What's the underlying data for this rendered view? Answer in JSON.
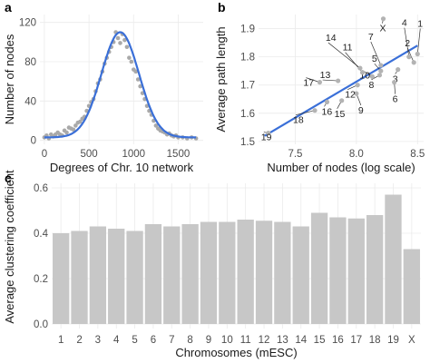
{
  "chart_data": [
    {
      "panel": "a",
      "type": "scatter",
      "xlabel": "Degrees of Chr. 10 network",
      "ylabel": "Number of nodes",
      "xlim": [
        -50,
        1780
      ],
      "ylim": [
        -4,
        128
      ],
      "xticks": [
        0,
        500,
        1000,
        1500
      ],
      "yticks": [
        0,
        40,
        80,
        120
      ],
      "fit_line": {
        "type": "gaussian",
        "amplitude": 107,
        "mean": 850,
        "sd": 210,
        "baseline": 3,
        "color": "#3a6fd8"
      },
      "points": [
        [
          0,
          3
        ],
        [
          25,
          5
        ],
        [
          50,
          2
        ],
        [
          75,
          6
        ],
        [
          100,
          4
        ],
        [
          125,
          6
        ],
        [
          150,
          8
        ],
        [
          175,
          6
        ],
        [
          200,
          5
        ],
        [
          225,
          10
        ],
        [
          250,
          8
        ],
        [
          275,
          13
        ],
        [
          300,
          12
        ],
        [
          325,
          11
        ],
        [
          350,
          15
        ],
        [
          375,
          18
        ],
        [
          400,
          19
        ],
        [
          425,
          22
        ],
        [
          450,
          24
        ],
        [
          475,
          30
        ],
        [
          500,
          35
        ],
        [
          525,
          39
        ],
        [
          550,
          42
        ],
        [
          575,
          50
        ],
        [
          600,
          58
        ],
        [
          625,
          62
        ],
        [
          650,
          70
        ],
        [
          675,
          78
        ],
        [
          700,
          84
        ],
        [
          725,
          90
        ],
        [
          750,
          95
        ],
        [
          775,
          100
        ],
        [
          800,
          110
        ],
        [
          825,
          104
        ],
        [
          850,
          99
        ],
        [
          875,
          108
        ],
        [
          900,
          102
        ],
        [
          925,
          95
        ],
        [
          950,
          84
        ],
        [
          975,
          80
        ],
        [
          1000,
          72
        ],
        [
          1025,
          70
        ],
        [
          1050,
          62
        ],
        [
          1075,
          55
        ],
        [
          1100,
          48
        ],
        [
          1125,
          42
        ],
        [
          1150,
          35
        ],
        [
          1175,
          30
        ],
        [
          1200,
          26
        ],
        [
          1225,
          20
        ],
        [
          1250,
          15
        ],
        [
          1275,
          12
        ],
        [
          1300,
          10
        ],
        [
          1325,
          9
        ],
        [
          1350,
          8
        ],
        [
          1375,
          6
        ],
        [
          1400,
          7
        ],
        [
          1425,
          5
        ],
        [
          1450,
          4
        ],
        [
          1475,
          5
        ],
        [
          1500,
          3
        ],
        [
          1550,
          3
        ],
        [
          1600,
          2
        ],
        [
          1650,
          3
        ],
        [
          1700,
          2
        ]
      ]
    },
    {
      "panel": "b",
      "type": "scatter",
      "xlabel": "Number of nodes (log scale)",
      "ylabel": "Average path length",
      "xlim": [
        7.2,
        8.55
      ],
      "ylim": [
        1.49,
        1.95
      ],
      "xticks": [
        7.5,
        8.0,
        8.5
      ],
      "yticks": [
        1.5,
        1.6,
        1.7,
        1.8,
        1.9
      ],
      "fit_line": {
        "from": [
          7.25,
          1.52
        ],
        "to": [
          8.5,
          1.84
        ],
        "color": "#3a6fd8"
      },
      "points": [
        {
          "label": "1",
          "x": 8.5,
          "y": 1.81
        },
        {
          "label": "2",
          "x": 8.47,
          "y": 1.78
        },
        {
          "label": "3",
          "x": 8.34,
          "y": 1.755
        },
        {
          "label": "4",
          "x": 8.43,
          "y": 1.8
        },
        {
          "label": "5",
          "x": 8.2,
          "y": 1.75
        },
        {
          "label": "6",
          "x": 8.31,
          "y": 1.71
        },
        {
          "label": "7",
          "x": 8.2,
          "y": 1.77
        },
        {
          "label": "8",
          "x": 8.19,
          "y": 1.735
        },
        {
          "label": "9",
          "x": 8.0,
          "y": 1.67
        },
        {
          "label": "10",
          "x": 8.13,
          "y": 1.73
        },
        {
          "label": "11",
          "x": 8.05,
          "y": 1.745
        },
        {
          "label": "12",
          "x": 8.01,
          "y": 1.7
        },
        {
          "label": "13",
          "x": 7.85,
          "y": 1.715
        },
        {
          "label": "14",
          "x": 8.03,
          "y": 1.76
        },
        {
          "label": "15",
          "x": 7.88,
          "y": 1.645
        },
        {
          "label": "16",
          "x": 7.76,
          "y": 1.64
        },
        {
          "label": "17",
          "x": 7.7,
          "y": 1.71
        },
        {
          "label": "18",
          "x": 7.66,
          "y": 1.61
        },
        {
          "label": "19",
          "x": 7.28,
          "y": 1.53
        },
        {
          "label": "X",
          "x": 8.22,
          "y": 1.935
        }
      ]
    },
    {
      "panel": "c",
      "type": "bar",
      "xlabel": "Chromosomes (mESC)",
      "ylabel": "Average clustering coefficient",
      "ylim": [
        -0.02,
        0.62
      ],
      "yticks": [
        0.0,
        0.2,
        0.4,
        0.6
      ],
      "categories": [
        "1",
        "2",
        "3",
        "4",
        "5",
        "6",
        "7",
        "8",
        "9",
        "10",
        "11",
        "12",
        "13",
        "14",
        "15",
        "16",
        "17",
        "18",
        "19",
        "X"
      ],
      "values": [
        0.4,
        0.41,
        0.43,
        0.42,
        0.41,
        0.44,
        0.43,
        0.44,
        0.45,
        0.45,
        0.46,
        0.455,
        0.45,
        0.43,
        0.49,
        0.47,
        0.465,
        0.48,
        0.57,
        0.33
      ]
    }
  ],
  "panels": {
    "a": "a",
    "b": "b",
    "c": "c"
  }
}
